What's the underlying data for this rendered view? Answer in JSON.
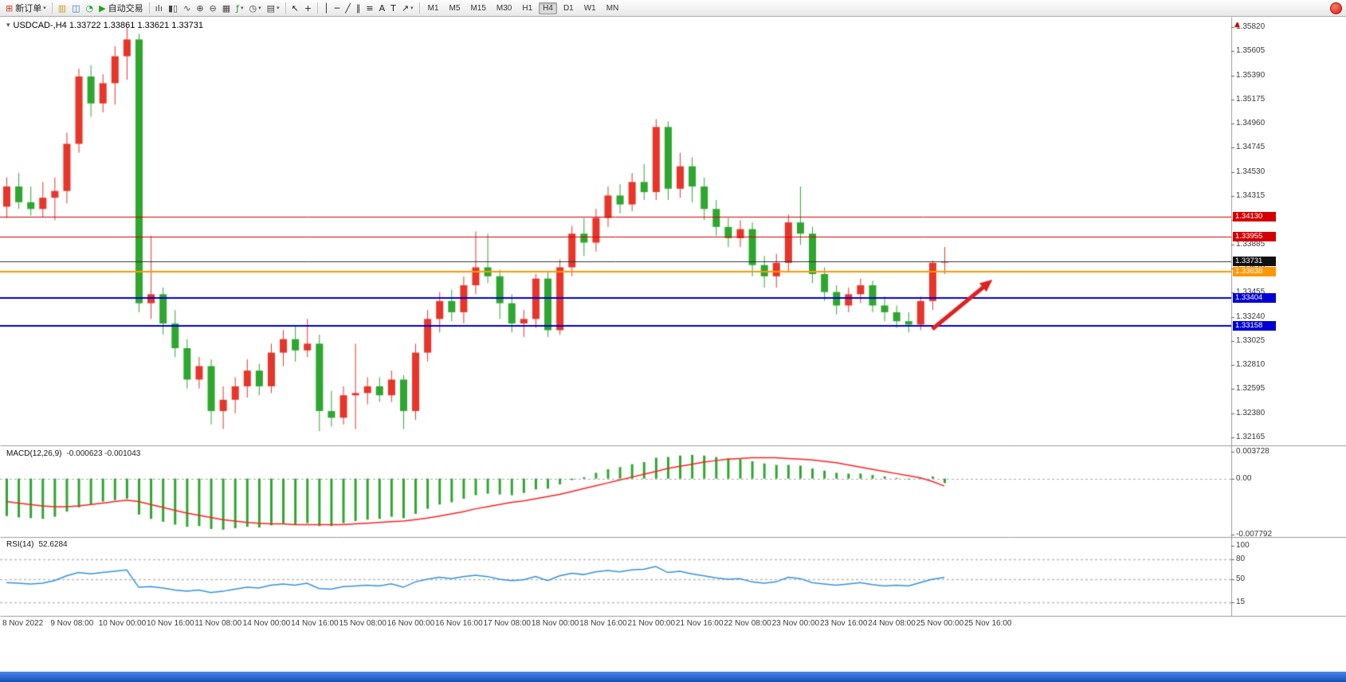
{
  "header": {
    "ohlc_title": "USDCAD-,H4 1.33722 1.33861 1.33621 1.33731",
    "symbol_icon_glyph": "▾",
    "scale_arrow_glyph": "▲"
  },
  "toolbar": {
    "caret_glyph": "▾",
    "items": [
      {
        "type": "button",
        "name": "new-order-button",
        "icon_name": "new-order-icon",
        "glyph": "⊞",
        "glyph_color": "#c8392b",
        "label": "新订单",
        "caret": true
      },
      {
        "type": "sep"
      },
      {
        "type": "icon",
        "name": "market-watch-icon",
        "glyph": "▥",
        "glyph_color": "#c89a20"
      },
      {
        "type": "icon",
        "name": "profiles-icon",
        "glyph": "◫",
        "glyph_color": "#3a6fd0"
      },
      {
        "type": "icon",
        "name": "sounds-icon",
        "glyph": "◔",
        "glyph_color": "#2da04a"
      },
      {
        "type": "button",
        "name": "autotrading-button",
        "icon_name": "autotrading-play-icon",
        "glyph": "▶",
        "glyph_color": "#1fa01f",
        "label": "自动交易"
      },
      {
        "type": "sep"
      },
      {
        "type": "icon",
        "name": "bar-chart-mode-icon",
        "glyph": "ıIı",
        "glyph_color": "#444"
      },
      {
        "type": "icon",
        "name": "candlestick-mode-icon",
        "glyph": "▮▯",
        "glyph_color": "#444"
      },
      {
        "type": "icon",
        "name": "line-chart-mode-icon",
        "glyph": "∿",
        "glyph_color": "#444"
      },
      {
        "type": "icon",
        "name": "zoom-in-icon",
        "glyph": "⊕",
        "glyph_color": "#444"
      },
      {
        "type": "icon",
        "name": "zoom-out-icon",
        "glyph": "⊖",
        "glyph_color": "#444"
      },
      {
        "type": "icon",
        "name": "tile-windows-icon",
        "glyph": "▦",
        "glyph_color": "#444"
      },
      {
        "type": "icon",
        "name": "indicators-icon",
        "glyph": "ƒ",
        "glyph_color": "#1fa01f",
        "caret": true
      },
      {
        "type": "icon",
        "name": "periods-icon",
        "glyph": "◷",
        "glyph_color": "#444",
        "caret": true
      },
      {
        "type": "icon",
        "name": "templates-icon",
        "glyph": "▤",
        "glyph_color": "#444",
        "caret": true
      },
      {
        "type": "sep"
      },
      {
        "type": "icon",
        "name": "cursor-icon",
        "glyph": "↖",
        "glyph_color": "#222"
      },
      {
        "type": "icon",
        "name": "crosshair-icon",
        "glyph": "+",
        "glyph_color": "#222"
      },
      {
        "type": "sep"
      },
      {
        "type": "icon",
        "name": "vertical-line-icon",
        "glyph": "│",
        "glyph_color": "#222"
      },
      {
        "type": "icon",
        "name": "horizontal-line-icon",
        "glyph": "─",
        "glyph_color": "#222"
      },
      {
        "type": "icon",
        "name": "trendline-icon",
        "glyph": "╱",
        "glyph_color": "#222"
      },
      {
        "type": "icon",
        "name": "channel-icon",
        "glyph": "∥",
        "glyph_color": "#222"
      },
      {
        "type": "icon",
        "name": "fibonacci-icon",
        "glyph": "≡",
        "glyph_color": "#222"
      },
      {
        "type": "icon",
        "name": "text-icon",
        "glyph": "A",
        "glyph_color": "#222"
      },
      {
        "type": "icon",
        "name": "label-icon",
        "glyph": "T",
        "glyph_color": "#222"
      },
      {
        "type": "icon",
        "name": "arrows-icon",
        "glyph": "↗",
        "glyph_color": "#222",
        "caret": true
      },
      {
        "type": "sep"
      }
    ],
    "timeframes": [
      "M1",
      "M5",
      "M15",
      "M30",
      "H1",
      "H4",
      "D1",
      "W1",
      "MN"
    ],
    "active_timeframe": "H4"
  },
  "chart_data": {
    "type": "candlestick",
    "symbol": "USDCAD-",
    "period": "H4",
    "colors": {
      "up": "#e8352a",
      "down": "#2ea72e",
      "macd_signal": "#ff2020",
      "rsi_line": "#3392e0",
      "axis_text": "#3a3a3a"
    },
    "main": {
      "price_ticks": [
        "1.35820",
        "1.35605",
        "1.35390",
        "1.35175",
        "1.34960",
        "1.34745",
        "1.34530",
        "1.34315",
        "1.34100",
        "1.33885",
        "1.33670",
        "1.33455",
        "1.33240",
        "1.33025",
        "1.32810",
        "1.32595",
        "1.32380",
        "1.32165"
      ],
      "candles": [
        [
          1.3422,
          1.3448,
          1.3412,
          1.344
        ],
        [
          1.344,
          1.3452,
          1.342,
          1.3426
        ],
        [
          1.3426,
          1.344,
          1.3414,
          1.342
        ],
        [
          1.342,
          1.3444,
          1.3413,
          1.343
        ],
        [
          1.343,
          1.3448,
          1.341,
          1.3436
        ],
        [
          1.3436,
          1.3488,
          1.3425,
          1.3478
        ],
        [
          1.3478,
          1.3545,
          1.347,
          1.3538
        ],
        [
          1.3538,
          1.3548,
          1.3502,
          1.3514
        ],
        [
          1.3514,
          1.354,
          1.3506,
          1.3532
        ],
        [
          1.3532,
          1.3565,
          1.3513,
          1.3556
        ],
        [
          1.3556,
          1.3582,
          1.3535,
          1.3571
        ],
        [
          1.3571,
          1.3576,
          1.3328,
          1.3336
        ],
        [
          1.3336,
          1.3396,
          1.3322,
          1.3344
        ],
        [
          1.3344,
          1.335,
          1.3308,
          1.3318
        ],
        [
          1.3318,
          1.333,
          1.3288,
          1.3296
        ],
        [
          1.3296,
          1.3304,
          1.326,
          1.3268
        ],
        [
          1.3268,
          1.3288,
          1.326,
          1.328
        ],
        [
          1.328,
          1.3286,
          1.3228,
          1.324
        ],
        [
          1.324,
          1.3262,
          1.3224,
          1.325
        ],
        [
          1.325,
          1.327,
          1.3238,
          1.3262
        ],
        [
          1.3262,
          1.3286,
          1.3252,
          1.3276
        ],
        [
          1.3276,
          1.3282,
          1.3254,
          1.3262
        ],
        [
          1.3262,
          1.33,
          1.3256,
          1.3292
        ],
        [
          1.3292,
          1.3312,
          1.328,
          1.3304
        ],
        [
          1.3304,
          1.3316,
          1.3284,
          1.3294
        ],
        [
          1.3294,
          1.3322,
          1.3288,
          1.33
        ],
        [
          1.33,
          1.3308,
          1.3222,
          1.324
        ],
        [
          1.324,
          1.3258,
          1.3226,
          1.3234
        ],
        [
          1.3234,
          1.3262,
          1.3228,
          1.3254
        ],
        [
          1.3254,
          1.33,
          1.3224,
          1.3256
        ],
        [
          1.3256,
          1.327,
          1.3246,
          1.3262
        ],
        [
          1.3262,
          1.327,
          1.3248,
          1.3254
        ],
        [
          1.3254,
          1.3276,
          1.3248,
          1.3268
        ],
        [
          1.3268,
          1.3272,
          1.3224,
          1.324
        ],
        [
          1.324,
          1.33,
          1.3232,
          1.3292
        ],
        [
          1.3292,
          1.333,
          1.3284,
          1.3322
        ],
        [
          1.3322,
          1.3346,
          1.331,
          1.3338
        ],
        [
          1.3338,
          1.3348,
          1.332,
          1.3328
        ],
        [
          1.3328,
          1.336,
          1.3318,
          1.3352
        ],
        [
          1.3352,
          1.34,
          1.3344,
          1.3368
        ],
        [
          1.3368,
          1.3398,
          1.3354,
          1.336
        ],
        [
          1.336,
          1.3366,
          1.3322,
          1.3336
        ],
        [
          1.3336,
          1.3344,
          1.331,
          1.3318
        ],
        [
          1.3318,
          1.333,
          1.3306,
          1.3322
        ],
        [
          1.3322,
          1.3362,
          1.3314,
          1.3358
        ],
        [
          1.3358,
          1.3364,
          1.3306,
          1.3312
        ],
        [
          1.3312,
          1.3375,
          1.3308,
          1.3368
        ],
        [
          1.3368,
          1.3405,
          1.336,
          1.3398
        ],
        [
          1.3398,
          1.3412,
          1.3378,
          1.339
        ],
        [
          1.339,
          1.342,
          1.3382,
          1.3412
        ],
        [
          1.3412,
          1.344,
          1.3404,
          1.3432
        ],
        [
          1.3432,
          1.3442,
          1.3416,
          1.3424
        ],
        [
          1.3424,
          1.3452,
          1.3418,
          1.3444
        ],
        [
          1.3444,
          1.346,
          1.3428,
          1.3435
        ],
        [
          1.3435,
          1.35,
          1.3428,
          1.3493
        ],
        [
          1.3493,
          1.3498,
          1.3428,
          1.3438
        ],
        [
          1.3438,
          1.347,
          1.343,
          1.3458
        ],
        [
          1.3458,
          1.3466,
          1.3426,
          1.344
        ],
        [
          1.344,
          1.3448,
          1.341,
          1.342
        ],
        [
          1.342,
          1.3428,
          1.3396,
          1.3404
        ],
        [
          1.3404,
          1.3412,
          1.3386,
          1.3394
        ],
        [
          1.3394,
          1.341,
          1.3386,
          1.3402
        ],
        [
          1.3402,
          1.3408,
          1.336,
          1.337
        ],
        [
          1.337,
          1.3378,
          1.335,
          1.336
        ],
        [
          1.336,
          1.338,
          1.335,
          1.3372
        ],
        [
          1.3372,
          1.3415,
          1.3364,
          1.3408
        ],
        [
          1.3408,
          1.344,
          1.3388,
          1.3398
        ],
        [
          1.3398,
          1.3404,
          1.3354,
          1.3362
        ],
        [
          1.3362,
          1.3368,
          1.3338,
          1.3346
        ],
        [
          1.3346,
          1.3352,
          1.3326,
          1.3334
        ],
        [
          1.3334,
          1.335,
          1.3328,
          1.3344
        ],
        [
          1.3344,
          1.3358,
          1.3336,
          1.3352
        ],
        [
          1.3352,
          1.3356,
          1.3328,
          1.3334
        ],
        [
          1.3334,
          1.3342,
          1.332,
          1.3328
        ],
        [
          1.3328,
          1.3334,
          1.3314,
          1.332
        ],
        [
          1.332,
          1.3328,
          1.331,
          1.3317
        ],
        [
          1.3317,
          1.3342,
          1.3312,
          1.3338
        ],
        [
          1.3338,
          1.3374,
          1.333,
          1.3372
        ],
        [
          1.33722,
          1.33861,
          1.33621,
          1.33731
        ]
      ],
      "hlines": [
        {
          "price": 1.3413,
          "label": "1.34130",
          "color": "#d40000",
          "label_bg": "#d40000",
          "thickness": 1,
          "role": "resistance"
        },
        {
          "price": 1.33955,
          "label": "1.33955",
          "color": "#d40000",
          "label_bg": "#d40000",
          "thickness": 1,
          "role": "resistance"
        },
        {
          "price": 1.33731,
          "label": "1.33731",
          "color": "#333333",
          "label_bg": "#111111",
          "thickness": 1,
          "role": "current-price"
        },
        {
          "price": 1.33638,
          "label": "1.33638",
          "color": "#ff9800",
          "label_bg": "#ff9800",
          "thickness": 2,
          "role": "level"
        },
        {
          "price": 1.33404,
          "label": "1.33404",
          "color": "#0000cc",
          "label_bg": "#0000d4",
          "thickness": 2,
          "role": "support"
        },
        {
          "price": 1.33158,
          "label": "1.33158",
          "color": "#0000cc",
          "label_bg": "#0000d4",
          "thickness": 2,
          "role": "support"
        }
      ],
      "arrow": {
        "name": "trend-arrow",
        "color": "#e02020",
        "from_bar": 77,
        "from_price": 1.3313,
        "to_bar": 82,
        "to_price": 1.3357
      }
    },
    "macd": {
      "name_label": "MACD(12,26,9)",
      "values_label": "-0.000623 -0.001043",
      "max": 0.003728,
      "min": -0.007792,
      "scale_ticks": [
        {
          "label": "0.003728",
          "value": 0.003728
        },
        {
          "label": "0.00",
          "value": 0
        },
        {
          "label": "-0.007792",
          "value": -0.007792
        }
      ],
      "levels": [
        0
      ],
      "histogram": [
        -0.0052,
        -0.0054,
        -0.0055,
        -0.0056,
        -0.0053,
        -0.0046,
        -0.004,
        -0.0036,
        -0.0032,
        -0.003,
        -0.0028,
        -0.005,
        -0.0056,
        -0.006,
        -0.0064,
        -0.0067,
        -0.0066,
        -0.007,
        -0.0071,
        -0.0069,
        -0.0067,
        -0.0068,
        -0.0065,
        -0.0063,
        -0.0064,
        -0.0062,
        -0.0066,
        -0.0066,
        -0.0062,
        -0.0059,
        -0.0057,
        -0.0056,
        -0.0053,
        -0.0055,
        -0.0049,
        -0.0042,
        -0.0036,
        -0.0033,
        -0.0028,
        -0.0023,
        -0.0021,
        -0.0022,
        -0.0023,
        -0.002,
        -0.0015,
        -0.0014,
        -0.0008,
        -0.0002,
        0.0002,
        0.0008,
        0.0013,
        0.0016,
        0.002,
        0.0023,
        0.0029,
        0.003,
        0.0032,
        0.0033,
        0.0032,
        0.003,
        0.0028,
        0.0027,
        0.0024,
        0.0021,
        0.0019,
        0.0019,
        0.0018,
        0.0014,
        0.0011,
        0.0008,
        0.0007,
        0.0007,
        0.0005,
        0.0003,
        0.0001,
        -0.0001,
        0.0001,
        0.0003,
        -0.000623
      ],
      "signal": [
        -0.0032,
        -0.0034,
        -0.0036,
        -0.0038,
        -0.0039,
        -0.0039,
        -0.0038,
        -0.0036,
        -0.0034,
        -0.0032,
        -0.003,
        -0.0032,
        -0.0036,
        -0.004,
        -0.0044,
        -0.0048,
        -0.0051,
        -0.0054,
        -0.0057,
        -0.0059,
        -0.0061,
        -0.0062,
        -0.0063,
        -0.0063,
        -0.0064,
        -0.0064,
        -0.0064,
        -0.0064,
        -0.0064,
        -0.0063,
        -0.0062,
        -0.0061,
        -0.006,
        -0.0059,
        -0.0057,
        -0.0055,
        -0.0052,
        -0.0049,
        -0.0046,
        -0.0042,
        -0.0039,
        -0.0036,
        -0.0033,
        -0.0031,
        -0.0028,
        -0.0025,
        -0.0022,
        -0.0018,
        -0.0014,
        -0.001,
        -0.0006,
        -0.0002,
        0.0002,
        0.0006,
        0.001,
        0.0014,
        0.0017,
        0.002,
        0.0023,
        0.0025,
        0.0027,
        0.0028,
        0.0029,
        0.0029,
        0.0029,
        0.0028,
        0.0027,
        0.0026,
        0.0024,
        0.0022,
        0.0019,
        0.0016,
        0.0013,
        0.001,
        0.0007,
        0.0004,
        0.0001,
        -0.0004,
        -0.001043
      ]
    },
    "rsi": {
      "name_label": "RSI(14)",
      "value_label": "52.6284",
      "range": [
        0,
        100
      ],
      "levels": [
        80,
        50,
        15
      ],
      "scale_ticks": [
        {
          "label": "100",
          "value": 100
        },
        {
          "label": "80",
          "value": 80
        },
        {
          "label": "50",
          "value": 50
        },
        {
          "label": "15",
          "value": 15
        }
      ],
      "values": [
        45,
        44,
        43,
        44,
        48,
        55,
        60,
        58,
        60,
        62,
        64,
        38,
        39,
        37,
        34,
        32,
        34,
        30,
        32,
        35,
        38,
        37,
        41,
        43,
        41,
        44,
        36,
        35,
        39,
        40,
        41,
        40,
        43,
        38,
        46,
        50,
        53,
        51,
        54,
        56,
        54,
        50,
        48,
        49,
        54,
        48,
        55,
        59,
        57,
        61,
        63,
        61,
        64,
        65,
        69,
        60,
        62,
        58,
        55,
        52,
        50,
        51,
        46,
        44,
        46,
        53,
        51,
        45,
        43,
        41,
        43,
        45,
        42,
        40,
        41,
        40,
        45,
        50,
        52.6
      ]
    },
    "time_labels": [
      "8 Nov 2022",
      "9 Nov 08:00",
      "10 Nov 00:00",
      "10 Nov 16:00",
      "11 Nov 08:00",
      "14 Nov 00:00",
      "14 Nov 16:00",
      "15 Nov 08:00",
      "16 Nov 00:00",
      "16 Nov 16:00",
      "17 Nov 08:00",
      "18 Nov 00:00",
      "18 Nov 16:00",
      "21 Nov 00:00",
      "21 Nov 16:00",
      "22 Nov 08:00",
      "23 Nov 00:00",
      "23 Nov 16:00",
      "24 Nov 08:00",
      "25 Nov 00:00",
      "25 Nov 16:00"
    ]
  }
}
